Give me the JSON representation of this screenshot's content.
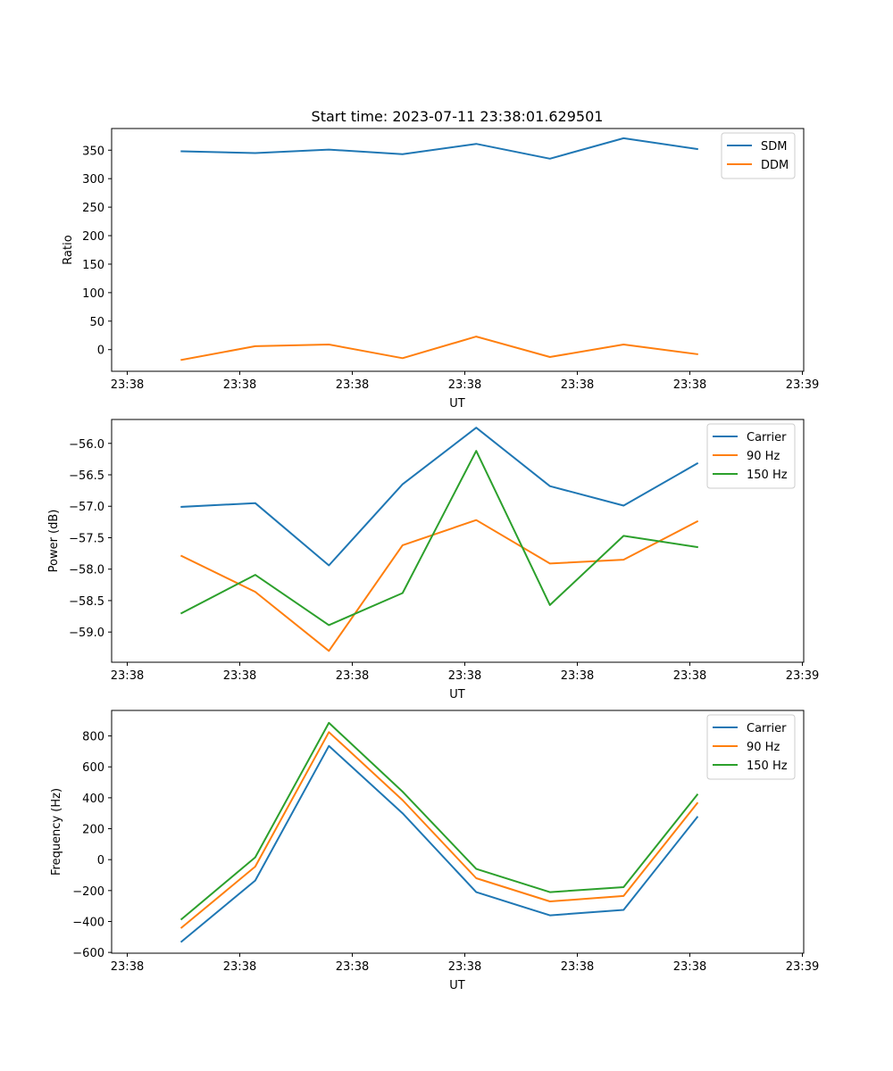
{
  "title": "Start time: 2023-07-11 23:38:01.629501",
  "colors": {
    "blue": "#1f77b4",
    "orange": "#ff7f0e",
    "green": "#2ca02c"
  },
  "chart_data": [
    {
      "type": "line",
      "xlabel": "UT",
      "ylabel": "Ratio",
      "x_ticks": [
        "23:38",
        "23:38",
        "23:38",
        "23:38",
        "23:38",
        "23:38",
        "23:39"
      ],
      "x_count": 8,
      "ylim": [
        -38,
        388
      ],
      "y_ticks": [
        0,
        50,
        100,
        150,
        200,
        250,
        300,
        350
      ],
      "y_tick_labels": [
        "0",
        "50",
        "100",
        "150",
        "200",
        "250",
        "300",
        "350"
      ],
      "legend_position": "top-right",
      "series": [
        {
          "name": "SDM",
          "color": "#1f77b4",
          "values": [
            348,
            345,
            351,
            343,
            361,
            335,
            371,
            352
          ]
        },
        {
          "name": "DDM",
          "color": "#ff7f0e",
          "values": [
            -18,
            6,
            9,
            -15,
            23,
            -13,
            9,
            -8
          ]
        }
      ]
    },
    {
      "type": "line",
      "xlabel": "UT",
      "ylabel": "Power (dB)",
      "x_ticks": [
        "23:38",
        "23:38",
        "23:38",
        "23:38",
        "23:38",
        "23:38",
        "23:39"
      ],
      "x_count": 8,
      "ylim": [
        -59.48,
        -55.62
      ],
      "y_ticks": [
        -59.0,
        -58.5,
        -58.0,
        -57.5,
        -57.0,
        -56.5,
        -56.0
      ],
      "y_tick_labels": [
        "−59.0",
        "−58.5",
        "−58.0",
        "−57.5",
        "−57.0",
        "−56.5",
        "−56.0"
      ],
      "legend_position": "top-right",
      "series": [
        {
          "name": "Carrier",
          "color": "#1f77b4",
          "values": [
            -57.01,
            -56.95,
            -57.94,
            -56.65,
            -55.75,
            -56.68,
            -56.99,
            -56.32
          ]
        },
        {
          "name": "90 Hz",
          "color": "#ff7f0e",
          "values": [
            -57.79,
            -58.36,
            -59.3,
            -57.62,
            -57.22,
            -57.91,
            -57.85,
            -57.24
          ]
        },
        {
          "name": "150 Hz",
          "color": "#2ca02c",
          "values": [
            -58.7,
            -58.09,
            -58.89,
            -58.38,
            -56.12,
            -58.57,
            -57.47,
            -57.65
          ]
        }
      ]
    },
    {
      "type": "line",
      "xlabel": "UT",
      "ylabel": "Frequency (Hz)",
      "x_ticks": [
        "23:38",
        "23:38",
        "23:38",
        "23:38",
        "23:38",
        "23:38",
        "23:39"
      ],
      "x_count": 8,
      "ylim": [
        -605,
        965
      ],
      "y_ticks": [
        -600,
        -400,
        -200,
        0,
        200,
        400,
        600,
        800
      ],
      "y_tick_labels": [
        "−600",
        "−400",
        "−200",
        "0",
        "200",
        "400",
        "600",
        "800"
      ],
      "legend_position": "top-right",
      "series": [
        {
          "name": "Carrier",
          "color": "#1f77b4",
          "values": [
            -530,
            -135,
            735,
            300,
            -210,
            -360,
            -325,
            275
          ]
        },
        {
          "name": "90 Hz",
          "color": "#ff7f0e",
          "values": [
            -440,
            -45,
            825,
            385,
            -120,
            -270,
            -235,
            365
          ]
        },
        {
          "name": "150 Hz",
          "color": "#2ca02c",
          "values": [
            -385,
            15,
            885,
            440,
            -60,
            -210,
            -178,
            420
          ]
        }
      ]
    }
  ]
}
